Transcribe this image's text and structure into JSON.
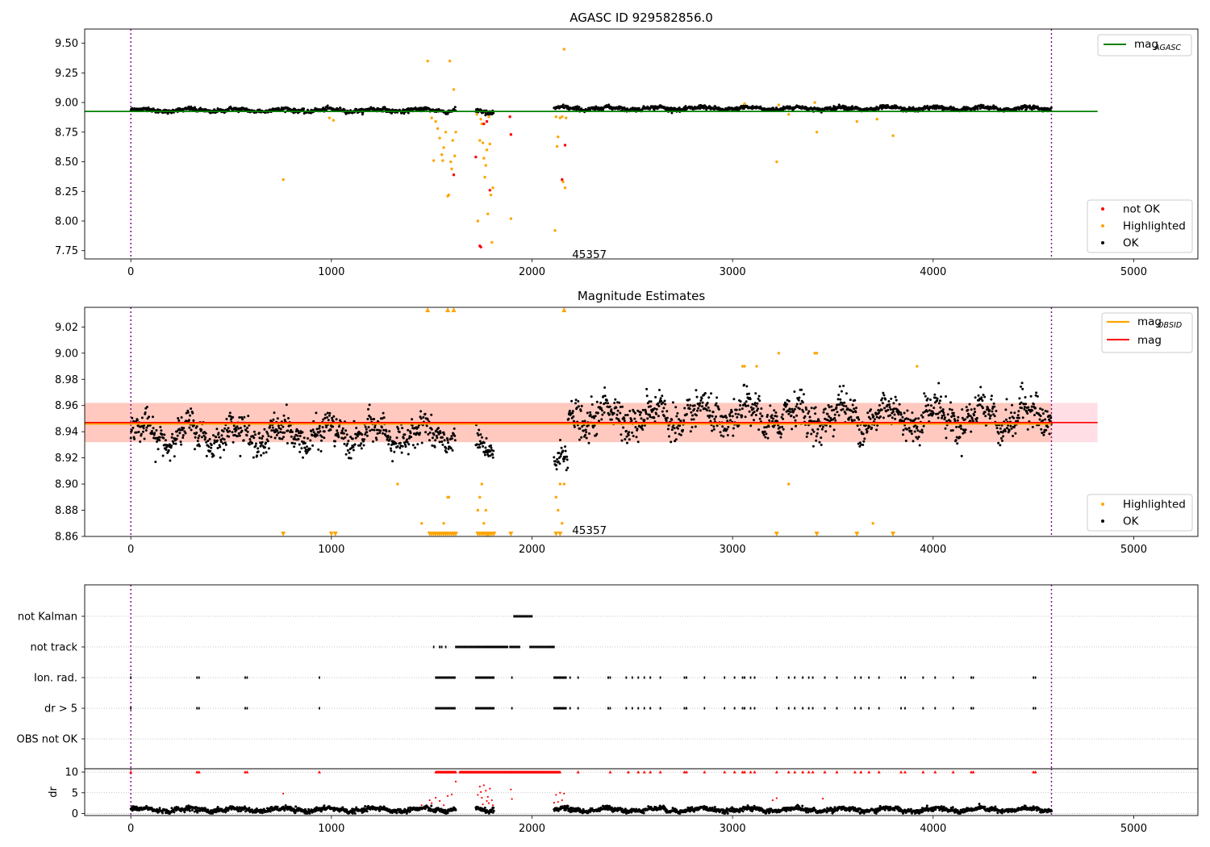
{
  "chart_data": [
    {
      "type": "scatter",
      "title": "AGASC ID 929582856.0",
      "xlim": [
        -230,
        5320
      ],
      "ylim": [
        7.68,
        9.62
      ],
      "x_ticks": [
        0,
        1000,
        2000,
        3000,
        4000,
        5000
      ],
      "y_ticks": [
        7.75,
        8.0,
        8.25,
        8.5,
        8.75,
        9.0,
        9.25,
        9.5
      ],
      "vlines": [
        0,
        4590
      ],
      "annotation": {
        "text": "45357",
        "x": 2200,
        "y": 7.72
      },
      "reference_line": {
        "name": "mag",
        "subscript": "AGASC",
        "value": 8.925,
        "x_range": [
          -230,
          4820
        ],
        "color": "#008000"
      },
      "legend_upper": [
        {
          "label": "mag",
          "subscript": "AGASC",
          "color": "#008000"
        }
      ],
      "legend_lower": [
        {
          "label": "not OK",
          "color": "#ff0000"
        },
        {
          "label": "Highlighted",
          "color": "#ffa500"
        },
        {
          "label": "OK",
          "color": "#000000"
        }
      ],
      "series": [
        {
          "name": "Highlighted",
          "color": "#ffa500",
          "points": [
            [
              760,
              8.35
            ],
            [
              990,
              8.87
            ],
            [
              1010,
              8.85
            ],
            [
              1480,
              9.35
            ],
            [
              1500,
              8.87
            ],
            [
              1510,
              8.51
            ],
            [
              1520,
              8.84
            ],
            [
              1530,
              8.78
            ],
            [
              1540,
              8.7
            ],
            [
              1550,
              8.56
            ],
            [
              1555,
              8.51
            ],
            [
              1560,
              8.62
            ],
            [
              1570,
              8.75
            ],
            [
              1580,
              8.21
            ],
            [
              1585,
              8.22
            ],
            [
              1590,
              9.35
            ],
            [
              1595,
              8.5
            ],
            [
              1600,
              8.44
            ],
            [
              1605,
              8.68
            ],
            [
              1610,
              9.11
            ],
            [
              1615,
              8.55
            ],
            [
              1620,
              8.75
            ],
            [
              1725,
              8.9
            ],
            [
              1730,
              8.0
            ],
            [
              1740,
              8.68
            ],
            [
              1745,
              8.86
            ],
            [
              1750,
              8.82
            ],
            [
              1755,
              8.66
            ],
            [
              1760,
              8.53
            ],
            [
              1765,
              8.37
            ],
            [
              1770,
              8.47
            ],
            [
              1775,
              8.6
            ],
            [
              1780,
              8.06
            ],
            [
              1785,
              8.88
            ],
            [
              1790,
              8.65
            ],
            [
              1795,
              8.22
            ],
            [
              1800,
              7.82
            ],
            [
              1805,
              8.28
            ],
            [
              1895,
              8.02
            ],
            [
              2115,
              7.92
            ],
            [
              2120,
              8.88
            ],
            [
              2125,
              8.63
            ],
            [
              2130,
              8.71
            ],
            [
              2140,
              8.87
            ],
            [
              2150,
              8.88
            ],
            [
              2155,
              8.33
            ],
            [
              2160,
              9.45
            ],
            [
              2165,
              8.28
            ],
            [
              2170,
              8.87
            ],
            [
              3220,
              8.5
            ],
            [
              3280,
              8.9
            ],
            [
              3420,
              8.75
            ],
            [
              3620,
              8.84
            ],
            [
              3720,
              8.86
            ],
            [
              3800,
              8.72
            ],
            [
              3060,
              8.99
            ],
            [
              3230,
              8.98
            ],
            [
              3410,
              9.0
            ]
          ]
        },
        {
          "name": "not OK",
          "color": "#ff0000",
          "points": [
            [
              1610,
              8.39
            ],
            [
              1720,
              8.54
            ],
            [
              1740,
              7.79
            ],
            [
              1745,
              7.78
            ],
            [
              1760,
              8.82
            ],
            [
              1775,
              8.84
            ],
            [
              1790,
              8.26
            ],
            [
              1890,
              8.88
            ],
            [
              1895,
              8.73
            ],
            [
              2150,
              8.35
            ],
            [
              2165,
              8.64
            ]
          ]
        }
      ],
      "ok_segments": [
        {
          "x": [
            0,
            1620
          ],
          "base": 8.935,
          "spread": 0.018
        },
        {
          "x": [
            1720,
            1810
          ],
          "base": 8.925,
          "spread": 0.025
        },
        {
          "x": [
            2110,
            4590
          ],
          "base": 8.95,
          "spread": 0.018
        }
      ]
    },
    {
      "type": "scatter",
      "title": "Magnitude Estimates",
      "xlim": [
        -230,
        5320
      ],
      "ylim": [
        8.86,
        9.035
      ],
      "x_ticks": [
        0,
        1000,
        2000,
        3000,
        4000,
        5000
      ],
      "y_ticks": [
        8.86,
        8.88,
        8.9,
        8.92,
        8.94,
        8.96,
        8.98,
        9.0,
        9.02
      ],
      "vlines": [
        0,
        4590
      ],
      "annotation": {
        "text": "45357",
        "x": 2200,
        "y": 8.865
      },
      "band_outer": {
        "low": 8.932,
        "high": 8.962,
        "x_range": [
          -230,
          4820
        ],
        "color": "#ffc0cb"
      },
      "band_inner": {
        "low": 8.932,
        "high": 8.962,
        "x_range": [
          -230,
          4590
        ],
        "color": "#ffa07a"
      },
      "lines": [
        {
          "name": "mag",
          "subscript": "OBSID",
          "value": 8.946,
          "x_range": [
            -230,
            4590
          ],
          "color": "#ffa500"
        },
        {
          "name": "mag",
          "value": 8.947,
          "x_range": [
            -230,
            4820
          ],
          "color": "#ff0000"
        }
      ],
      "legend_upper": [
        {
          "label": "mag",
          "subscript": "OBSID",
          "color": "#ffa500"
        },
        {
          "label": "mag",
          "color": "#ff0000"
        }
      ],
      "legend_lower": [
        {
          "label": "Highlighted",
          "color": "#ffa500"
        },
        {
          "label": "OK",
          "color": "#000000"
        }
      ],
      "highlighted_points": [
        [
          1330,
          8.9
        ],
        [
          1450,
          8.87
        ],
        [
          1560,
          8.87
        ],
        [
          1580,
          8.89
        ],
        [
          1585,
          8.89
        ],
        [
          1730,
          8.88
        ],
        [
          1740,
          8.89
        ],
        [
          1750,
          8.9
        ],
        [
          1760,
          8.87
        ],
        [
          1770,
          8.88
        ],
        [
          1780,
          8.86
        ],
        [
          2120,
          8.89
        ],
        [
          2130,
          8.88
        ],
        [
          2140,
          8.9
        ],
        [
          2150,
          8.87
        ],
        [
          2160,
          8.9
        ],
        [
          3050,
          8.99
        ],
        [
          3060,
          8.99
        ],
        [
          3120,
          8.99
        ],
        [
          3230,
          9.0
        ],
        [
          3280,
          8.9
        ],
        [
          3410,
          9.0
        ],
        [
          3420,
          9.0
        ],
        [
          3700,
          8.87
        ],
        [
          3920,
          8.99
        ]
      ],
      "up_markers": [
        1480,
        1580,
        1610,
        2160
      ],
      "down_markers": [
        760,
        1000,
        1020,
        1490,
        1500,
        1510,
        1520,
        1530,
        1540,
        1550,
        1560,
        1570,
        1580,
        1590,
        1600,
        1610,
        1620,
        1730,
        1740,
        1750,
        1760,
        1770,
        1780,
        1790,
        1800,
        1810,
        1895,
        2120,
        2140,
        3220,
        3420,
        3620,
        3800
      ],
      "ok_segments": [
        {
          "x": [
            0,
            1620
          ],
          "base": 8.938,
          "spread": 0.012
        },
        {
          "x": [
            1720,
            1810
          ],
          "base": 8.93,
          "spread": 0.01
        },
        {
          "x": [
            2110,
            2180
          ],
          "base": 8.915,
          "spread": 0.012
        },
        {
          "x": [
            2180,
            4590
          ],
          "base": 8.952,
          "spread": 0.014
        }
      ]
    },
    {
      "type": "scatter",
      "title": "",
      "xlim": [
        -230,
        5320
      ],
      "y_categories": [
        "not Kalman",
        "not track",
        "Ion. rad.",
        "dr > 5",
        "OBS not OK"
      ],
      "vlines": [
        0,
        4590
      ],
      "rows": [
        {
          "label": "not Kalman",
          "ranges": [
            [
              1910,
              2000
            ]
          ],
          "points": []
        },
        {
          "label": "not track",
          "ranges": [
            [
              1620,
              1880
            ],
            [
              1890,
              1940
            ],
            [
              1990,
              2110
            ]
          ],
          "points": [
            1510,
            1540,
            1550,
            1570
          ]
        },
        {
          "label": "Ion. rad.",
          "ranges": [
            [
              1520,
              1620
            ],
            [
              1720,
              1810
            ],
            [
              2110,
              2170
            ]
          ],
          "points": [
            0,
            330,
            340,
            570,
            580,
            940,
            1900,
            2190,
            2230,
            2380,
            2390,
            2470,
            2500,
            2530,
            2560,
            2590,
            2640,
            2760,
            2770,
            2860,
            2960,
            3010,
            3050,
            3060,
            3090,
            3110,
            3220,
            3280,
            3310,
            3350,
            3380,
            3400,
            3460,
            3520,
            3610,
            3640,
            3680,
            3730,
            3840,
            3860,
            3950,
            4010,
            4100,
            4190,
            4200,
            4500,
            4510
          ]
        },
        {
          "label": "dr > 5",
          "ranges": [
            [
              1520,
              1620
            ],
            [
              1720,
              1810
            ],
            [
              2110,
              2170
            ]
          ],
          "points": [
            0,
            330,
            340,
            570,
            580,
            940,
            1900,
            2190,
            2230,
            2380,
            2390,
            2470,
            2500,
            2530,
            2560,
            2590,
            2640,
            2760,
            2770,
            2860,
            2960,
            3010,
            3050,
            3060,
            3090,
            3110,
            3220,
            3280,
            3310,
            3350,
            3380,
            3400,
            3460,
            3520,
            3610,
            3640,
            3680,
            3730,
            3840,
            3860,
            3950,
            4010,
            4100,
            4190,
            4200,
            4500,
            4510
          ]
        },
        {
          "label": "OBS not OK",
          "ranges": [],
          "points": []
        }
      ]
    },
    {
      "type": "scatter",
      "ylabel": "dr",
      "xlim": [
        -230,
        5320
      ],
      "ylim": [
        -0.5,
        10.8
      ],
      "x_ticks": [
        0,
        1000,
        2000,
        3000,
        4000,
        5000
      ],
      "y_ticks": [
        0,
        5,
        10
      ],
      "vlines": [
        0,
        4590
      ],
      "ok_segments": [
        {
          "x": [
            0,
            1620
          ],
          "base": 0.9,
          "spread": 0.6
        },
        {
          "x": [
            1720,
            1810
          ],
          "base": 1.0,
          "spread": 0.6
        },
        {
          "x": [
            2110,
            4590
          ],
          "base": 0.9,
          "spread": 0.6
        }
      ],
      "red_points": [
        [
          760,
          4.8
        ],
        [
          1450,
          2.0
        ],
        [
          1490,
          3.2
        ],
        [
          1500,
          2.5
        ],
        [
          1520,
          3.8
        ],
        [
          1540,
          3.0
        ],
        [
          1560,
          2.0
        ],
        [
          1580,
          4.2
        ],
        [
          1600,
          4.6
        ],
        [
          1620,
          7.7
        ],
        [
          1730,
          4.5
        ],
        [
          1740,
          6.5
        ],
        [
          1745,
          5.2
        ],
        [
          1750,
          3.8
        ],
        [
          1755,
          2.2
        ],
        [
          1760,
          6.8
        ],
        [
          1770,
          5.5
        ],
        [
          1775,
          3.0
        ],
        [
          1780,
          4.0
        ],
        [
          1785,
          2.5
        ],
        [
          1790,
          6.0
        ],
        [
          1800,
          3.2
        ],
        [
          1805,
          2.0
        ],
        [
          1895,
          5.8
        ],
        [
          1900,
          3.5
        ],
        [
          2110,
          2.6
        ],
        [
          2120,
          4.5
        ],
        [
          2130,
          2.8
        ],
        [
          2140,
          5.0
        ],
        [
          2150,
          3.2
        ],
        [
          2160,
          4.8
        ],
        [
          3200,
          3.2
        ],
        [
          3220,
          3.7
        ],
        [
          3450,
          3.6
        ]
      ],
      "capped_ranges": [
        [
          1520,
          1620
        ],
        [
          1640,
          2140
        ]
      ],
      "capped_points": [
        0,
        330,
        340,
        570,
        580,
        940,
        1900,
        2230,
        2390,
        2480,
        2530,
        2560,
        2590,
        2640,
        2760,
        2770,
        2860,
        2960,
        3010,
        3050,
        3060,
        3090,
        3110,
        3220,
        3280,
        3310,
        3350,
        3380,
        3400,
        3460,
        3520,
        3610,
        3640,
        3680,
        3730,
        3840,
        3860,
        3950,
        4010,
        4100,
        4190,
        4200,
        4500,
        4510
      ]
    }
  ]
}
